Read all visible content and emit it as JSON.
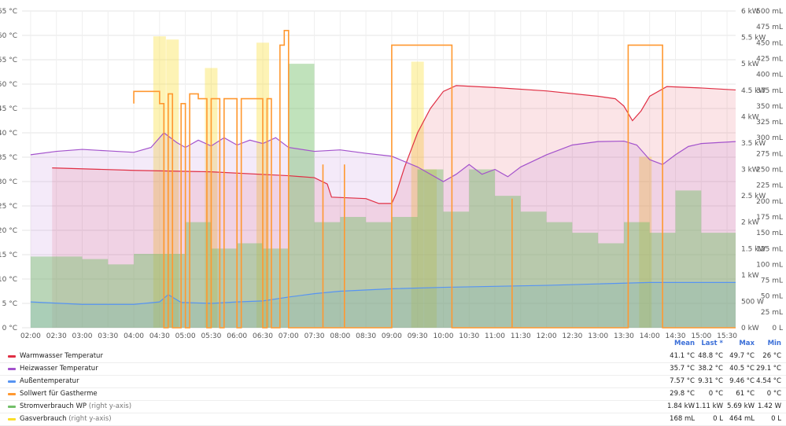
{
  "chart_data": {
    "type": "line",
    "x_ticks": [
      "02:00",
      "02:30",
      "03:00",
      "03:30",
      "04:00",
      "04:30",
      "05:00",
      "05:30",
      "06:00",
      "06:30",
      "07:00",
      "07:30",
      "08:00",
      "08:30",
      "09:00",
      "09:30",
      "10:00",
      "10:30",
      "11:00",
      "11:30",
      "12:00",
      "12:30",
      "13:00",
      "13:30",
      "14:00",
      "14:30",
      "15:00",
      "15:30"
    ],
    "y_left_ticks": [
      "0 °C",
      "5 °C",
      "10 °C",
      "15 °C",
      "20 °C",
      "25 °C",
      "30 °C",
      "35 °C",
      "40 °C",
      "45 °C",
      "50 °C",
      "55 °C",
      "60 °C",
      "65 °C"
    ],
    "y_left_range": [
      0,
      65
    ],
    "y_right1_ticks": [
      "0 kW",
      "500 W",
      "1 kW",
      "1.5 kW",
      "2 kW",
      "2.5 kW",
      "3 kW",
      "3.5 kW",
      "4 kW",
      "4.5 kW",
      "5 kW",
      "5.5 kW",
      "6 kW"
    ],
    "y_right1_range": [
      0,
      6
    ],
    "y_right2_ticks": [
      "0 L",
      "25 mL",
      "50 mL",
      "75 mL",
      "100 mL",
      "125 mL",
      "150 mL",
      "175 mL",
      "200 mL",
      "225 mL",
      "250 mL",
      "275 mL",
      "300 mL",
      "325 mL",
      "350 mL",
      "375 mL",
      "400 mL",
      "425 mL",
      "450 mL",
      "475 mL",
      "500 mL"
    ],
    "y_right2_range": [
      0,
      500
    ],
    "grid": true,
    "legend_placement": "bottom",
    "legend_columns": {
      "mean": "Mean",
      "last": "Last *",
      "max": "Max",
      "min": "Min"
    },
    "series": [
      {
        "name": "Warmwasser Temperatur",
        "suffix": "",
        "color": "#e02f44",
        "axis": "left",
        "mean": "41.1 °C",
        "last": "48.8 °C",
        "max": "49.7 °C",
        "min": "26 °C",
        "points": [
          [
            "02:25",
            32.8
          ],
          [
            "04:00",
            32.3
          ],
          [
            "05:30",
            32.0
          ],
          [
            "07:00",
            31.2
          ],
          [
            "07:30",
            30.8
          ],
          [
            "07:45",
            29.5
          ],
          [
            "07:50",
            26.8
          ],
          [
            "08:30",
            26.5
          ],
          [
            "08:45",
            25.5
          ],
          [
            "09:00",
            25.5
          ],
          [
            "09:05",
            27.5
          ],
          [
            "09:15",
            33
          ],
          [
            "09:30",
            40
          ],
          [
            "09:45",
            45
          ],
          [
            "10:00",
            48.5
          ],
          [
            "10:15",
            49.7
          ],
          [
            "11:00",
            49.3
          ],
          [
            "12:00",
            48.6
          ],
          [
            "13:00",
            47.5
          ],
          [
            "13:20",
            47.0
          ],
          [
            "13:30",
            45.5
          ],
          [
            "13:40",
            42.5
          ],
          [
            "13:50",
            44.5
          ],
          [
            "14:00",
            47.5
          ],
          [
            "14:20",
            49.5
          ],
          [
            "15:00",
            49.2
          ],
          [
            "15:40",
            48.8
          ]
        ]
      },
      {
        "name": "Heizwasser Temperatur",
        "suffix": "",
        "color": "#a352cc",
        "axis": "left",
        "mean": "35.7 °C",
        "last": "38.2 °C",
        "max": "40.5 °C",
        "min": "29.1 °C",
        "points": [
          [
            "02:00",
            35.5
          ],
          [
            "02:30",
            36.2
          ],
          [
            "03:00",
            36.6
          ],
          [
            "03:30",
            36.3
          ],
          [
            "04:00",
            36.0
          ],
          [
            "04:20",
            37
          ],
          [
            "04:35",
            40.0
          ],
          [
            "04:50",
            38.0
          ],
          [
            "05:00",
            37.0
          ],
          [
            "05:15",
            38.5
          ],
          [
            "05:30",
            37.3
          ],
          [
            "05:45",
            39.0
          ],
          [
            "06:00",
            37.5
          ],
          [
            "06:15",
            38.5
          ],
          [
            "06:30",
            37.8
          ],
          [
            "06:45",
            39.0
          ],
          [
            "07:00",
            37.0
          ],
          [
            "07:30",
            36.2
          ],
          [
            "08:00",
            36.5
          ],
          [
            "08:30",
            35.8
          ],
          [
            "09:00",
            35.2
          ],
          [
            "09:30",
            33.0
          ],
          [
            "10:00",
            30.0
          ],
          [
            "10:15",
            31.5
          ],
          [
            "10:30",
            33.5
          ],
          [
            "10:45",
            31.5
          ],
          [
            "11:00",
            32.5
          ],
          [
            "11:15",
            31.0
          ],
          [
            "11:30",
            33.0
          ],
          [
            "12:00",
            35.5
          ],
          [
            "12:30",
            37.5
          ],
          [
            "13:00",
            38.2
          ],
          [
            "13:30",
            38.3
          ],
          [
            "13:45",
            37.5
          ],
          [
            "14:00",
            34.5
          ],
          [
            "14:15",
            33.5
          ],
          [
            "14:30",
            35.5
          ],
          [
            "14:45",
            37.2
          ],
          [
            "15:00",
            37.8
          ],
          [
            "15:40",
            38.2
          ]
        ]
      },
      {
        "name": "Außentemperatur",
        "suffix": "",
        "color": "#5794f2",
        "axis": "left",
        "mean": "7.57 °C",
        "last": "9.31 °C",
        "max": "9.46 °C",
        "min": "4.54 °C",
        "points": [
          [
            "02:00",
            5.3
          ],
          [
            "03:00",
            4.8
          ],
          [
            "04:00",
            4.8
          ],
          [
            "04:30",
            5.3
          ],
          [
            "04:40",
            6.8
          ],
          [
            "04:55",
            5.2
          ],
          [
            "05:30",
            5.0
          ],
          [
            "06:00",
            5.3
          ],
          [
            "06:30",
            5.5
          ],
          [
            "07:00",
            6.3
          ],
          [
            "07:30",
            7.0
          ],
          [
            "08:00",
            7.5
          ],
          [
            "09:00",
            8.0
          ],
          [
            "10:00",
            8.3
          ],
          [
            "11:00",
            8.5
          ],
          [
            "12:00",
            8.7
          ],
          [
            "13:00",
            9.0
          ],
          [
            "14:00",
            9.3
          ],
          [
            "15:40",
            9.3
          ]
        ]
      },
      {
        "name": "Sollwert für Gastherme",
        "suffix": "",
        "color": "#ff9830",
        "axis": "left",
        "mean": "29.8 °C",
        "last": "0 °C",
        "max": "61 °C",
        "min": "0 °C",
        "points": [
          [
            "04:00",
            46
          ],
          [
            "04:00",
            48.5
          ],
          [
            "04:30",
            48.5
          ],
          [
            "04:30",
            46
          ],
          [
            "04:35",
            46
          ],
          [
            "04:35",
            0
          ],
          [
            "04:40",
            0
          ],
          [
            "04:40",
            48
          ],
          [
            "04:45",
            48
          ],
          [
            "04:45",
            0
          ],
          [
            "04:55",
            0
          ],
          [
            "04:55",
            46
          ],
          [
            "05:00",
            46
          ],
          [
            "05:00",
            0
          ],
          [
            "05:05",
            0
          ],
          [
            "05:05",
            48
          ],
          [
            "05:15",
            48
          ],
          [
            "05:15",
            47
          ],
          [
            "05:25",
            47
          ],
          [
            "05:25",
            0
          ],
          [
            "05:30",
            0
          ],
          [
            "05:30",
            47
          ],
          [
            "05:40",
            47
          ],
          [
            "05:40",
            0
          ],
          [
            "05:45",
            0
          ],
          [
            "05:45",
            47
          ],
          [
            "06:00",
            47
          ],
          [
            "06:00",
            0
          ],
          [
            "06:05",
            0
          ],
          [
            "06:05",
            47
          ],
          [
            "06:30",
            47
          ],
          [
            "06:30",
            0
          ],
          [
            "06:35",
            0
          ],
          [
            "06:35",
            47
          ],
          [
            "06:40",
            47
          ],
          [
            "06:40",
            0
          ],
          [
            "06:50",
            0
          ],
          [
            "06:50",
            58
          ],
          [
            "06:55",
            58
          ],
          [
            "06:55",
            61
          ],
          [
            "07:00",
            61
          ],
          [
            "07:00",
            0
          ],
          [
            "07:30",
            0
          ],
          [
            "07:30",
            0
          ],
          [
            "08:00",
            0
          ],
          [
            "08:00",
            0
          ],
          [
            "09:00",
            0
          ],
          [
            "09:00",
            58
          ],
          [
            "10:10",
            58
          ],
          [
            "10:10",
            0
          ],
          [
            "13:35",
            0
          ],
          [
            "13:35",
            58
          ],
          [
            "14:15",
            58
          ],
          [
            "14:15",
            0
          ],
          [
            "15:40",
            0
          ]
        ]
      },
      {
        "name": "Stromverbrauch WP",
        "suffix": "(right y-axis)",
        "color": "#73bf69",
        "axis": "right1",
        "mean": "1.84 kW",
        "last": "1.11 kW",
        "max": "5.69 kW",
        "min": "1.42 W",
        "points": [
          [
            "02:00",
            1.35
          ],
          [
            "02:30",
            1.35
          ],
          [
            "03:00",
            1.3
          ],
          [
            "03:30",
            1.2
          ],
          [
            "04:00",
            1.4
          ],
          [
            "04:30",
            1.4
          ],
          [
            "05:00",
            2.0
          ],
          [
            "05:30",
            1.5
          ],
          [
            "06:00",
            1.6
          ],
          [
            "06:30",
            1.5
          ],
          [
            "07:00",
            5.0
          ],
          [
            "07:30",
            2.0
          ],
          [
            "08:00",
            2.1
          ],
          [
            "08:30",
            2.0
          ],
          [
            "09:00",
            2.1
          ],
          [
            "09:30",
            3.0
          ],
          [
            "10:00",
            2.2
          ],
          [
            "10:30",
            3.0
          ],
          [
            "11:00",
            2.5
          ],
          [
            "11:30",
            2.2
          ],
          [
            "12:00",
            2.0
          ],
          [
            "12:30",
            1.8
          ],
          [
            "13:00",
            1.6
          ],
          [
            "13:30",
            2.0
          ],
          [
            "14:00",
            1.8
          ],
          [
            "14:30",
            2.6
          ],
          [
            "15:00",
            1.8
          ],
          [
            "15:40",
            1.1
          ]
        ]
      },
      {
        "name": "Gasverbrauch",
        "suffix": "(right y-axis)",
        "color": "#fade2a",
        "axis": "right2",
        "mean": "168 mL",
        "last": "0 L",
        "max": "464 mL",
        "min": "0 L",
        "bars": [
          [
            "04:30",
            460
          ],
          [
            "04:45",
            455
          ],
          [
            "05:30",
            410
          ],
          [
            "06:30",
            450
          ],
          [
            "09:30",
            420
          ],
          [
            "09:45",
            250
          ],
          [
            "13:55",
            270
          ]
        ]
      }
    ]
  }
}
